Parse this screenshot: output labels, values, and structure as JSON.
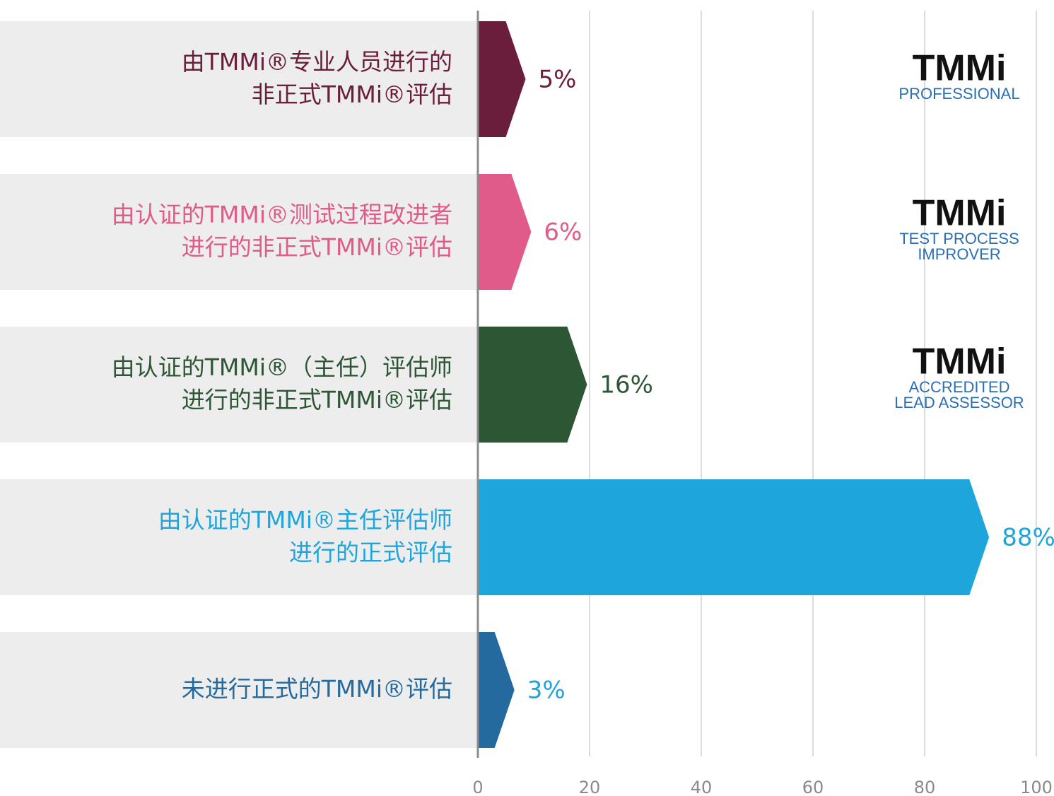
{
  "chart_data": {
    "type": "bar",
    "categories": [
      [
        "由TMMi®专业人员进行的",
        "非正式TMMi®评估"
      ],
      [
        "由认证的TMMi®测试过程改进者",
        "进行的非正式TMMi®评估"
      ],
      [
        "由认证的TMMi®（主任）评估师",
        "进行的非正式TMMi®评估"
      ],
      [
        "由认证的TMMi®主任评估师",
        "进行的正式评估"
      ],
      [
        "未进行正式的TMMi®评估"
      ]
    ],
    "values": [
      5,
      6,
      16,
      88,
      3
    ],
    "value_labels": [
      "5%",
      "6%",
      "16%",
      "88%",
      "3%"
    ],
    "colors": [
      "#6b1e3c",
      "#e05a8a",
      "#2d5734",
      "#1ea6dc",
      "#256a9e"
    ],
    "label_colors": [
      "#6b1e3c",
      "#e05a8a",
      "#2d5734",
      "#1ea6dc",
      "#1ea6dc"
    ],
    "category_colors": [
      "#6b1e3c",
      "#e05a8a",
      "#2d5734",
      "#1ea6dc",
      "#256a9e"
    ],
    "xlim": [
      0,
      100
    ],
    "xticks": [
      0,
      20,
      40,
      60,
      80,
      100
    ],
    "grid": true,
    "logos": [
      {
        "mark": "TMMi",
        "sub": [
          "PROFESSIONAL"
        ]
      },
      {
        "mark": "TMMi",
        "sub": [
          "TEST PROCESS",
          "IMPROVER"
        ]
      },
      {
        "mark": "TMMi",
        "sub": [
          "ACCREDITED",
          "LEAD ASSESSOR"
        ]
      }
    ]
  }
}
